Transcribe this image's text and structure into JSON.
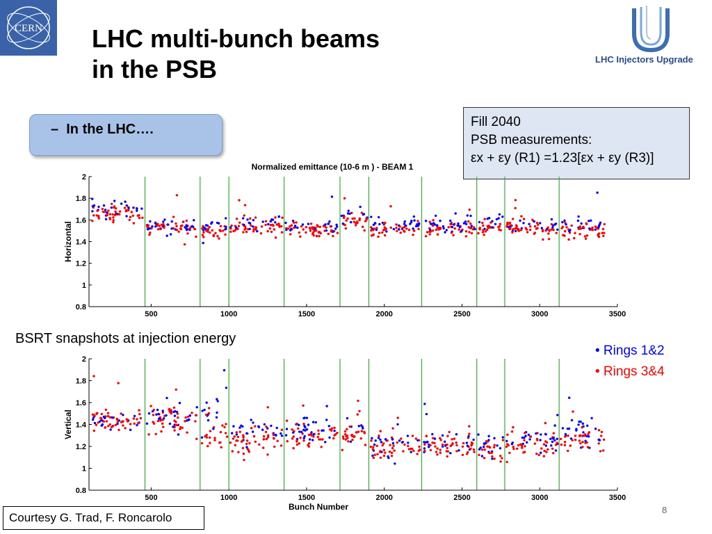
{
  "header": {
    "title_line1": "LHC multi-bunch beams",
    "title_line2": "in the PSB",
    "cern_logo_text": "CERN",
    "liu_logo_text": "LHC Injectors Upgrade"
  },
  "callout": {
    "dash": "–",
    "text": "In the LHC…."
  },
  "fill_info": {
    "line1": "Fill 2040",
    "line2": "PSB measurements:",
    "line3": "εx + εy (R1) =1.23[εx + εy (R3)]"
  },
  "caption": "BSRT snapshots at injection energy",
  "legend": [
    {
      "label": "• Rings 1&2",
      "color": "#0000ff"
    },
    {
      "label": "• Rings 3&4",
      "color": "#ff0000"
    }
  ],
  "courtesy": "Courtesy G. Trad, F. Roncarolo",
  "page_number": "8",
  "colors": {
    "rings12": "#0000ff",
    "rings34": "#ff0000",
    "batch_line": "#2db82d"
  },
  "chart_data": [
    {
      "type": "scatter",
      "title": "Normalized emittance (10-6 m )   - BEAM 1",
      "xlabel": "",
      "ylabel": "Horizontal",
      "xlim": [
        100,
        3500
      ],
      "ylim": [
        0.8,
        2
      ],
      "xticks": [
        500,
        1000,
        1500,
        2000,
        2500,
        3000,
        3500
      ],
      "yticks": [
        0.8,
        1,
        1.2,
        1.4,
        1.6,
        1.8,
        2
      ],
      "batch_boundaries": [
        460,
        815,
        1000,
        1355,
        1715,
        1900,
        2240,
        2595,
        2775,
        3125
      ],
      "groups": [
        {
          "x0": 120,
          "x1": 445,
          "mean_red": 1.66,
          "mean_blue": 1.7,
          "spread": 0.08
        },
        {
          "x0": 470,
          "x1": 800,
          "mean_red": 1.52,
          "mean_blue": 1.54,
          "spread": 0.07
        },
        {
          "x0": 825,
          "x1": 990,
          "mean_red": 1.5,
          "mean_blue": 1.54,
          "spread": 0.07
        },
        {
          "x0": 1010,
          "x1": 1345,
          "mean_red": 1.54,
          "mean_blue": 1.57,
          "spread": 0.08
        },
        {
          "x0": 1365,
          "x1": 1700,
          "mean_red": 1.51,
          "mean_blue": 1.54,
          "spread": 0.06
        },
        {
          "x0": 1725,
          "x1": 1890,
          "mean_red": 1.57,
          "mean_blue": 1.63,
          "spread": 0.09
        },
        {
          "x0": 1910,
          "x1": 2230,
          "mean_red": 1.51,
          "mean_blue": 1.55,
          "spread": 0.07
        },
        {
          "x0": 2250,
          "x1": 2585,
          "mean_red": 1.52,
          "mean_blue": 1.56,
          "spread": 0.08
        },
        {
          "x0": 2605,
          "x1": 2765,
          "mean_red": 1.53,
          "mean_blue": 1.6,
          "spread": 0.08
        },
        {
          "x0": 2785,
          "x1": 3115,
          "mean_red": 1.53,
          "mean_blue": 1.56,
          "spread": 0.07
        },
        {
          "x0": 3135,
          "x1": 3420,
          "mean_red": 1.5,
          "mean_blue": 1.56,
          "spread": 0.08
        }
      ],
      "series": [
        {
          "name": "Rings 1&2",
          "color": "#0000ff"
        },
        {
          "name": "Rings 3&4",
          "color": "#ff0000"
        }
      ]
    },
    {
      "type": "scatter",
      "title": "",
      "xlabel": "Bunch Number",
      "ylabel": "Vertical",
      "xlim": [
        100,
        3500
      ],
      "ylim": [
        0.8,
        2
      ],
      "xticks": [
        500,
        1000,
        1500,
        2000,
        2500,
        3000,
        3500
      ],
      "yticks": [
        0.8,
        1,
        1.2,
        1.4,
        1.6,
        1.8,
        2
      ],
      "batch_boundaries": [
        460,
        815,
        1000,
        1355,
        1715,
        1900,
        2240,
        2595,
        2775,
        3125
      ],
      "groups": [
        {
          "x0": 120,
          "x1": 445,
          "mean_red": 1.44,
          "mean_blue": 1.42,
          "spread": 0.1
        },
        {
          "x0": 470,
          "x1": 800,
          "mean_red": 1.45,
          "mean_blue": 1.45,
          "spread": 0.14
        },
        {
          "x0": 825,
          "x1": 990,
          "mean_red": 1.3,
          "mean_blue": 1.5,
          "spread": 0.17
        },
        {
          "x0": 1010,
          "x1": 1345,
          "mean_red": 1.26,
          "mean_blue": 1.34,
          "spread": 0.12
        },
        {
          "x0": 1365,
          "x1": 1700,
          "mean_red": 1.3,
          "mean_blue": 1.36,
          "spread": 0.12
        },
        {
          "x0": 1725,
          "x1": 1890,
          "mean_red": 1.3,
          "mean_blue": 1.38,
          "spread": 0.11
        },
        {
          "x0": 1910,
          "x1": 2230,
          "mean_red": 1.18,
          "mean_blue": 1.2,
          "spread": 0.12
        },
        {
          "x0": 2250,
          "x1": 2585,
          "mean_red": 1.2,
          "mean_blue": 1.24,
          "spread": 0.11
        },
        {
          "x0": 2605,
          "x1": 2765,
          "mean_red": 1.16,
          "mean_blue": 1.2,
          "spread": 0.11
        },
        {
          "x0": 2785,
          "x1": 3115,
          "mean_red": 1.22,
          "mean_blue": 1.26,
          "spread": 0.12
        },
        {
          "x0": 3135,
          "x1": 3420,
          "mean_red": 1.26,
          "mean_blue": 1.32,
          "spread": 0.13
        }
      ],
      "series": [
        {
          "name": "Rings 1&2",
          "color": "#0000ff"
        },
        {
          "name": "Rings 3&4",
          "color": "#ff0000"
        }
      ]
    }
  ]
}
